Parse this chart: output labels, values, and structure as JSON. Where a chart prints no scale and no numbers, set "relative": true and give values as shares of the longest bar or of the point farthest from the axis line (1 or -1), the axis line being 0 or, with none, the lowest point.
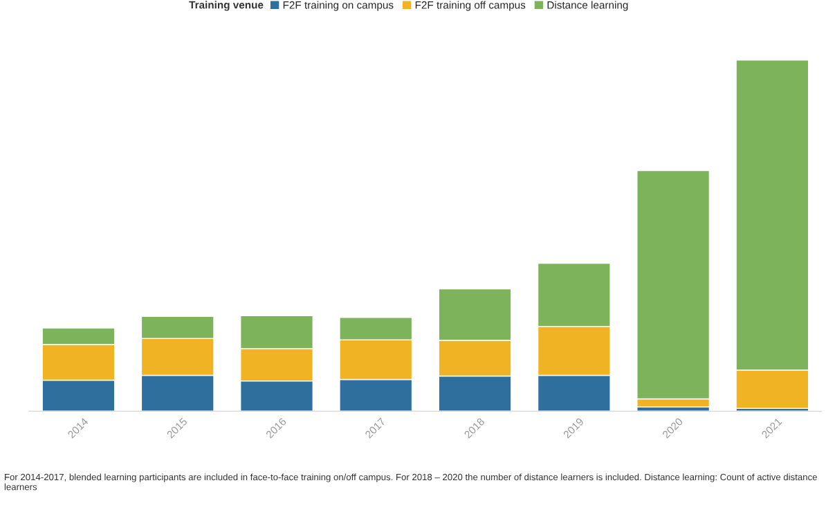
{
  "chart_data": {
    "type": "bar",
    "stacked": true,
    "relative": true,
    "legend": "top",
    "legend_title": "Training venue",
    "categories": [
      "2014",
      "2015",
      "2016",
      "2017",
      "2018",
      "2019",
      "2020",
      "2021"
    ],
    "series": [
      {
        "name": "F2F training on campus",
        "color": "#2e6f9e",
        "values": [
          0.088,
          0.102,
          0.086,
          0.09,
          0.1,
          0.102,
          0.012,
          0.008
        ]
      },
      {
        "name": "F2F training off campus",
        "color": "#f0b323",
        "values": [
          0.102,
          0.105,
          0.092,
          0.113,
          0.102,
          0.139,
          0.023,
          0.109
        ]
      },
      {
        "name": "Distance learning",
        "color": "#7db35a",
        "values": [
          0.047,
          0.063,
          0.094,
          0.064,
          0.146,
          0.18,
          0.65,
          0.883
        ]
      }
    ],
    "annotations": [
      "For 2014-2017, blended learning participants are included in face-to-face training on/off campus. For 2018 – 2020 the number of distance learners is included. Distance learning: Count of active distance learners"
    ]
  }
}
